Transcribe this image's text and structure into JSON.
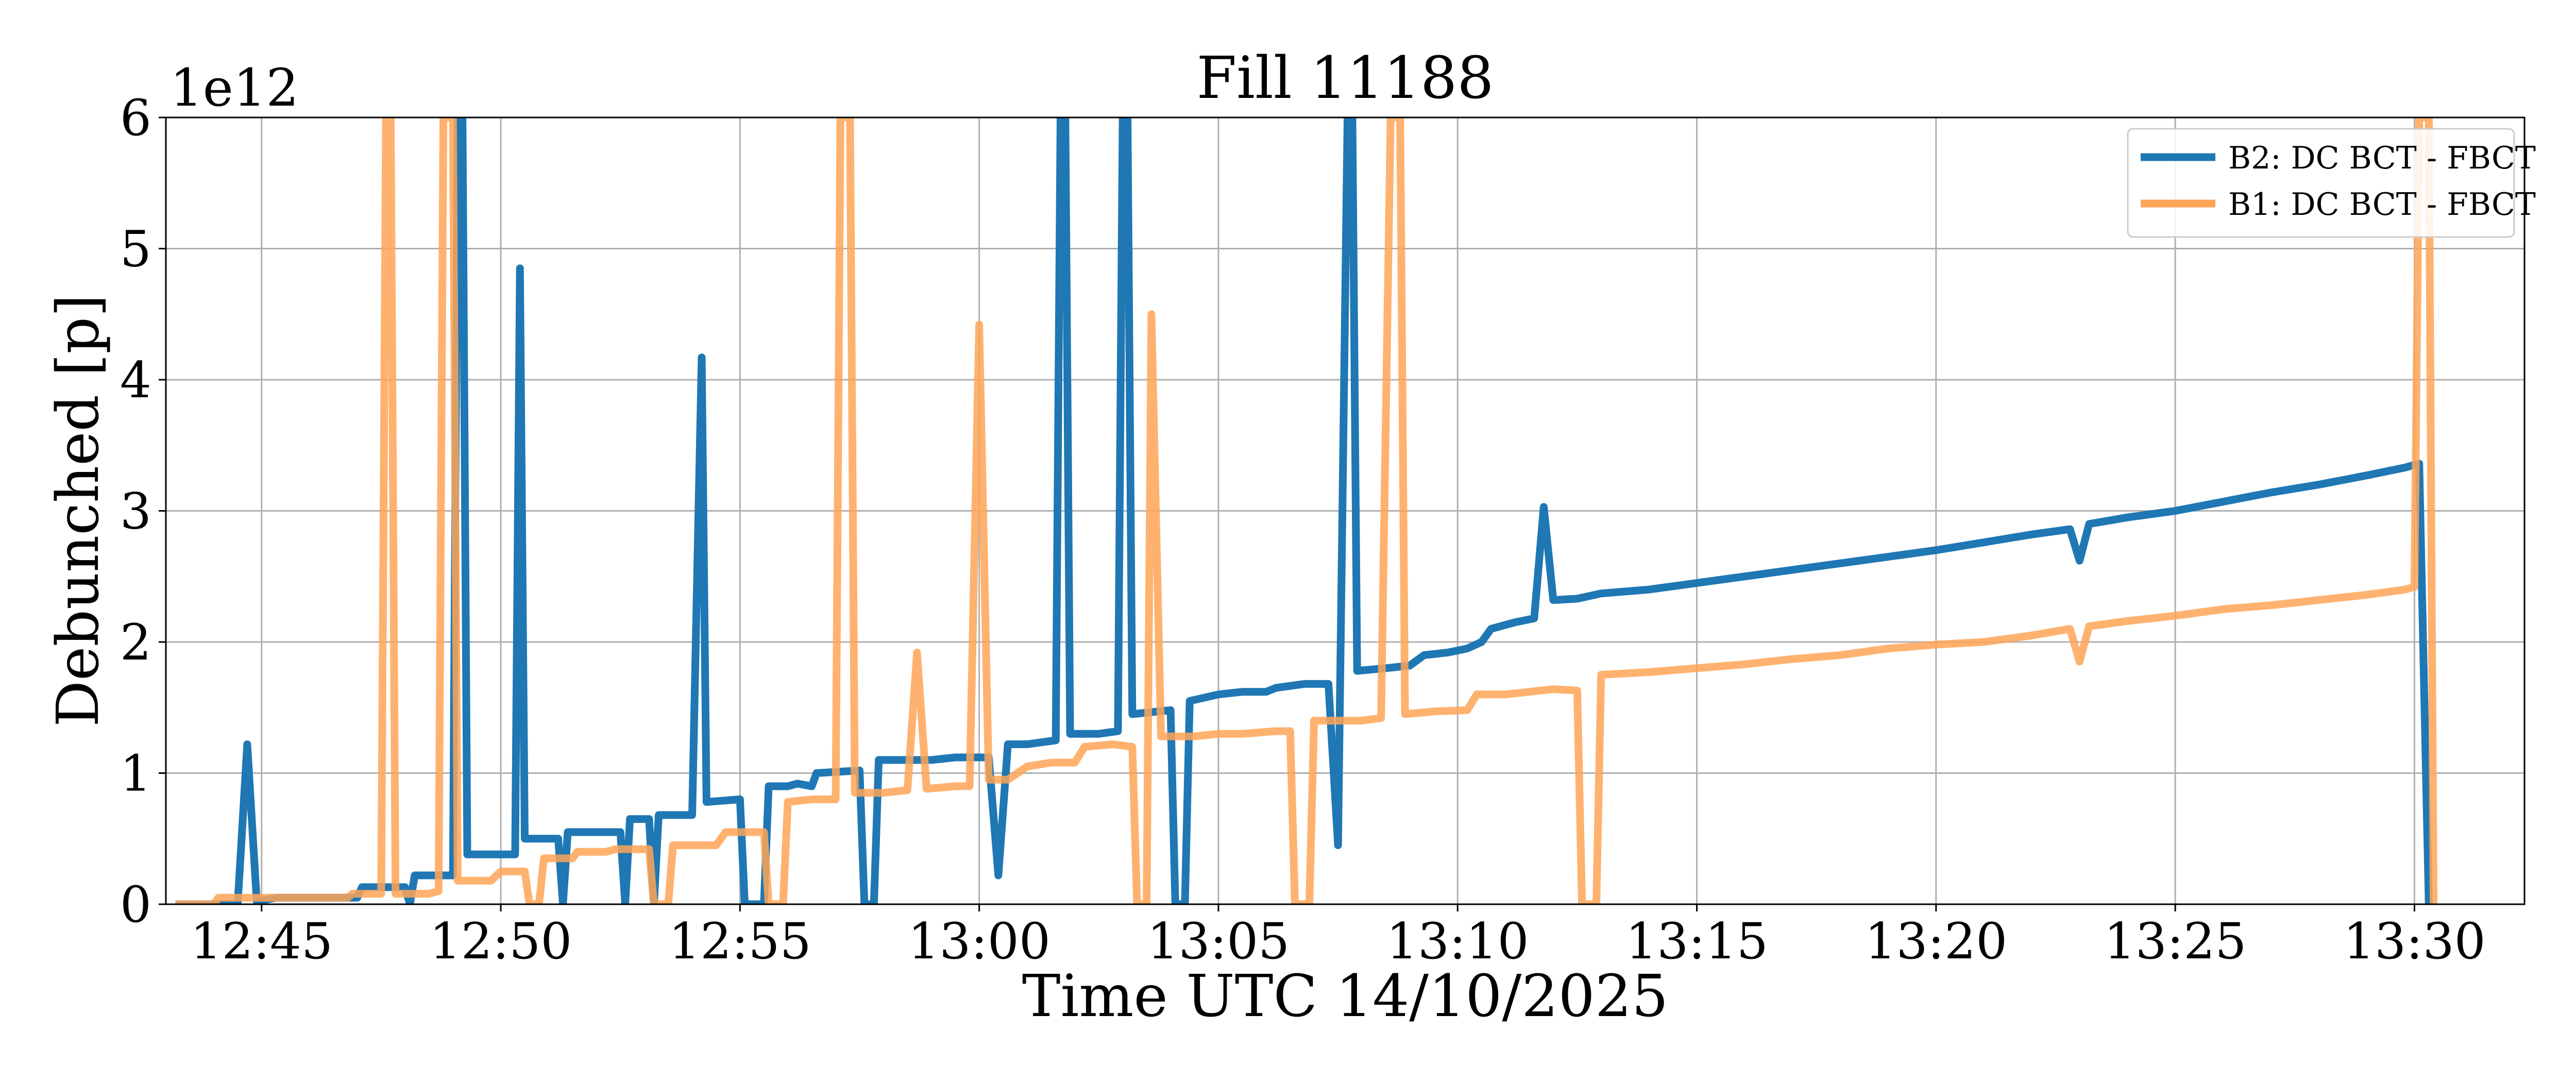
{
  "chart_data": {
    "type": "line",
    "title": "Fill 11188",
    "xlabel": "Time UTC 14/10/2025",
    "ylabel": "Debunched [p]",
    "y_scale_label": "1e12",
    "x_ticks": [
      "12:45",
      "12:50",
      "12:55",
      "13:00",
      "13:05",
      "13:10",
      "13:15",
      "13:20",
      "13:25",
      "13:30"
    ],
    "y_ticks": [
      "0",
      "1",
      "2",
      "3",
      "4",
      "5",
      "6"
    ],
    "xlim_minutes": [
      -2.0,
      47.3
    ],
    "ylim": [
      0,
      6
    ],
    "grid": true,
    "legend_position": "top-right",
    "series": [
      {
        "name": "B2: DC BCT - FBCT",
        "color": "#1f77b4",
        "points": [
          [
            -1.8,
            0.0
          ],
          [
            -0.8,
            0.0
          ],
          [
            -0.5,
            0.0
          ],
          [
            -0.3,
            1.22
          ],
          [
            -0.1,
            0.02
          ],
          [
            0.3,
            0.05
          ],
          [
            2.0,
            0.05
          ],
          [
            2.1,
            0.13
          ],
          [
            3.0,
            0.13
          ],
          [
            3.1,
            0.0
          ],
          [
            3.2,
            0.22
          ],
          [
            4.0,
            0.22
          ],
          [
            4.1,
            6.0
          ],
          [
            4.2,
            6.0
          ],
          [
            4.3,
            0.38
          ],
          [
            5.3,
            0.38
          ],
          [
            5.4,
            4.85
          ],
          [
            5.5,
            0.5
          ],
          [
            6.2,
            0.5
          ],
          [
            6.3,
            0.0
          ],
          [
            6.4,
            0.55
          ],
          [
            7.5,
            0.55
          ],
          [
            7.6,
            0.0
          ],
          [
            7.7,
            0.65
          ],
          [
            8.1,
            0.65
          ],
          [
            8.2,
            0.0
          ],
          [
            8.3,
            0.68
          ],
          [
            9.0,
            0.68
          ],
          [
            9.2,
            4.17
          ],
          [
            9.3,
            0.78
          ],
          [
            10.0,
            0.8
          ],
          [
            10.1,
            0.0
          ],
          [
            10.5,
            0.0
          ],
          [
            10.6,
            0.9
          ],
          [
            11.0,
            0.9
          ],
          [
            11.2,
            0.92
          ],
          [
            11.5,
            0.9
          ],
          [
            11.6,
            1.0
          ],
          [
            12.5,
            1.02
          ],
          [
            12.6,
            0.0
          ],
          [
            12.8,
            0.0
          ],
          [
            12.9,
            1.1
          ],
          [
            13.5,
            1.1
          ],
          [
            14.0,
            1.1
          ],
          [
            14.5,
            1.12
          ],
          [
            15.2,
            1.12
          ],
          [
            15.4,
            0.22
          ],
          [
            15.6,
            1.22
          ],
          [
            16.0,
            1.22
          ],
          [
            16.6,
            1.25
          ],
          [
            16.7,
            6.0
          ],
          [
            16.8,
            6.0
          ],
          [
            16.9,
            1.3
          ],
          [
            17.5,
            1.3
          ],
          [
            17.9,
            1.32
          ],
          [
            18.0,
            6.0
          ],
          [
            18.1,
            6.0
          ],
          [
            18.2,
            1.45
          ],
          [
            19.0,
            1.48
          ],
          [
            19.1,
            0.0
          ],
          [
            19.3,
            0.0
          ],
          [
            19.4,
            1.55
          ],
          [
            20.0,
            1.6
          ],
          [
            20.5,
            1.62
          ],
          [
            21.0,
            1.62
          ],
          [
            21.2,
            1.65
          ],
          [
            21.8,
            1.68
          ],
          [
            22.3,
            1.68
          ],
          [
            22.5,
            0.45
          ],
          [
            22.7,
            6.0
          ],
          [
            22.8,
            6.0
          ],
          [
            22.9,
            1.78
          ],
          [
            23.5,
            1.8
          ],
          [
            24.0,
            1.82
          ],
          [
            24.3,
            1.9
          ],
          [
            24.8,
            1.92
          ],
          [
            25.2,
            1.95
          ],
          [
            25.5,
            2.0
          ],
          [
            25.7,
            2.1
          ],
          [
            26.2,
            2.15
          ],
          [
            26.6,
            2.18
          ],
          [
            26.8,
            3.03
          ],
          [
            27.0,
            2.32
          ],
          [
            27.5,
            2.33
          ],
          [
            28.0,
            2.37
          ],
          [
            29.0,
            2.4
          ],
          [
            30.0,
            2.45
          ],
          [
            31.0,
            2.5
          ],
          [
            32.0,
            2.55
          ],
          [
            33.0,
            2.6
          ],
          [
            34.0,
            2.65
          ],
          [
            35.0,
            2.7
          ],
          [
            36.0,
            2.76
          ],
          [
            37.0,
            2.82
          ],
          [
            37.8,
            2.86
          ],
          [
            38.0,
            2.62
          ],
          [
            38.2,
            2.9
          ],
          [
            39.0,
            2.95
          ],
          [
            40.0,
            3.0
          ],
          [
            41.0,
            3.07
          ],
          [
            42.0,
            3.14
          ],
          [
            43.0,
            3.2
          ],
          [
            44.0,
            3.27
          ],
          [
            44.8,
            3.33
          ],
          [
            45.1,
            3.36
          ],
          [
            45.3,
            0.0
          ]
        ]
      },
      {
        "name": "B1: DC BCT - FBCT",
        "color": "#ffa556",
        "points": [
          [
            -1.8,
            0.0
          ],
          [
            -1.0,
            0.0
          ],
          [
            -0.9,
            0.05
          ],
          [
            0.0,
            0.05
          ],
          [
            1.8,
            0.05
          ],
          [
            1.9,
            0.08
          ],
          [
            2.5,
            0.08
          ],
          [
            2.6,
            6.0
          ],
          [
            2.7,
            6.0
          ],
          [
            2.8,
            0.08
          ],
          [
            3.5,
            0.08
          ],
          [
            3.7,
            0.1
          ],
          [
            3.8,
            6.0
          ],
          [
            4.0,
            6.0
          ],
          [
            4.1,
            0.18
          ],
          [
            4.8,
            0.18
          ],
          [
            5.0,
            0.25
          ],
          [
            5.5,
            0.25
          ],
          [
            5.6,
            0.0
          ],
          [
            5.8,
            0.0
          ],
          [
            5.9,
            0.35
          ],
          [
            6.5,
            0.35
          ],
          [
            6.6,
            0.4
          ],
          [
            7.2,
            0.4
          ],
          [
            7.4,
            0.42
          ],
          [
            8.1,
            0.42
          ],
          [
            8.2,
            0.0
          ],
          [
            8.5,
            0.0
          ],
          [
            8.6,
            0.45
          ],
          [
            9.5,
            0.45
          ],
          [
            9.7,
            0.55
          ],
          [
            10.5,
            0.55
          ],
          [
            10.6,
            0.0
          ],
          [
            10.9,
            0.0
          ],
          [
            11.0,
            0.78
          ],
          [
            11.5,
            0.8
          ],
          [
            12.0,
            0.8
          ],
          [
            12.1,
            6.0
          ],
          [
            12.3,
            6.0
          ],
          [
            12.4,
            0.85
          ],
          [
            13.0,
            0.85
          ],
          [
            13.5,
            0.87
          ],
          [
            13.7,
            1.92
          ],
          [
            13.9,
            0.88
          ],
          [
            14.5,
            0.9
          ],
          [
            14.8,
            0.9
          ],
          [
            15.0,
            4.42
          ],
          [
            15.2,
            0.95
          ],
          [
            15.6,
            0.95
          ],
          [
            15.8,
            1.0
          ],
          [
            16.0,
            1.05
          ],
          [
            16.5,
            1.08
          ],
          [
            17.0,
            1.08
          ],
          [
            17.2,
            1.2
          ],
          [
            17.8,
            1.22
          ],
          [
            18.2,
            1.2
          ],
          [
            18.3,
            0.0
          ],
          [
            18.5,
            0.0
          ],
          [
            18.6,
            4.5
          ],
          [
            18.8,
            1.28
          ],
          [
            19.2,
            1.28
          ],
          [
            19.5,
            1.28
          ],
          [
            20.0,
            1.3
          ],
          [
            20.5,
            1.3
          ],
          [
            21.2,
            1.32
          ],
          [
            21.5,
            1.32
          ],
          [
            21.6,
            0.0
          ],
          [
            21.9,
            0.0
          ],
          [
            22.0,
            1.4
          ],
          [
            23.0,
            1.4
          ],
          [
            23.4,
            1.42
          ],
          [
            23.6,
            6.0
          ],
          [
            23.8,
            6.0
          ],
          [
            23.9,
            1.45
          ],
          [
            24.5,
            1.47
          ],
          [
            25.2,
            1.48
          ],
          [
            25.4,
            1.6
          ],
          [
            26.0,
            1.6
          ],
          [
            26.5,
            1.62
          ],
          [
            27.0,
            1.64
          ],
          [
            27.5,
            1.63
          ],
          [
            27.6,
            0.0
          ],
          [
            27.9,
            0.0
          ],
          [
            28.0,
            1.75
          ],
          [
            29.0,
            1.77
          ],
          [
            30.0,
            1.8
          ],
          [
            31.0,
            1.83
          ],
          [
            32.0,
            1.87
          ],
          [
            33.0,
            1.9
          ],
          [
            34.0,
            1.95
          ],
          [
            35.0,
            1.98
          ],
          [
            36.0,
            2.0
          ],
          [
            37.0,
            2.05
          ],
          [
            37.8,
            2.1
          ],
          [
            38.0,
            1.85
          ],
          [
            38.2,
            2.12
          ],
          [
            39.0,
            2.16
          ],
          [
            40.0,
            2.2
          ],
          [
            41.0,
            2.25
          ],
          [
            42.0,
            2.28
          ],
          [
            43.0,
            2.32
          ],
          [
            44.0,
            2.36
          ],
          [
            44.8,
            2.4
          ],
          [
            45.0,
            2.42
          ],
          [
            45.1,
            6.0
          ],
          [
            45.3,
            6.0
          ],
          [
            45.4,
            0.0
          ]
        ]
      }
    ]
  }
}
